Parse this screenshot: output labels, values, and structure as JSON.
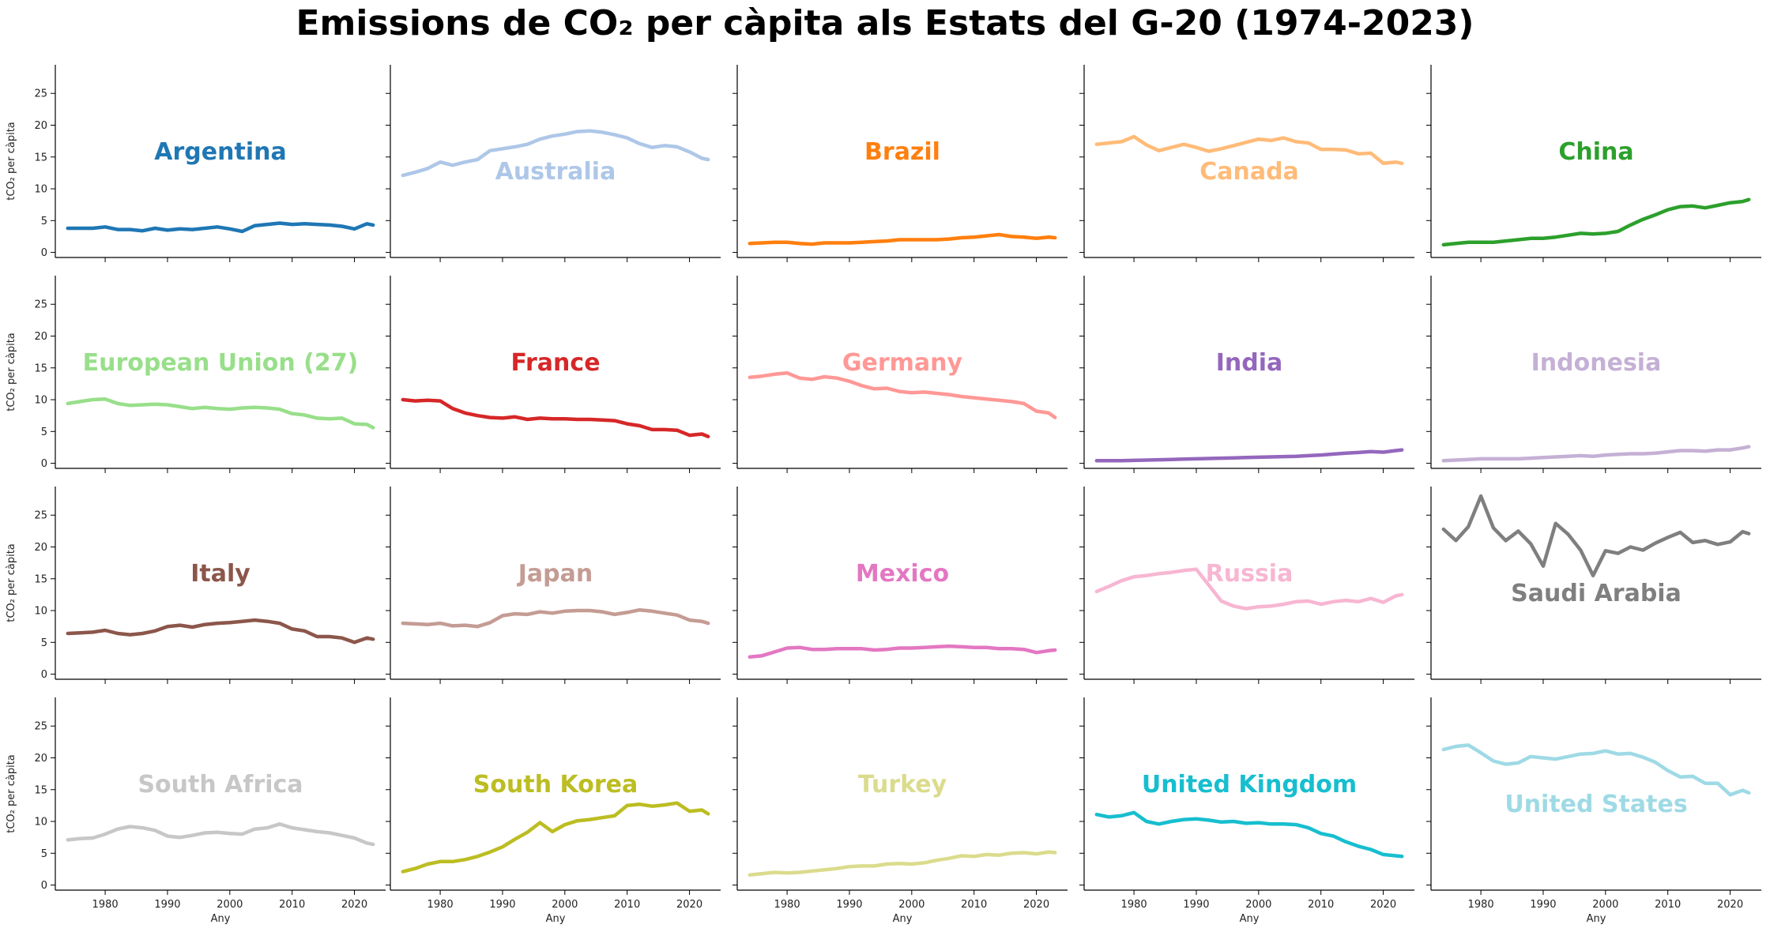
{
  "chart_data": {
    "type": "line",
    "title": "Emissions de CO₂ per càpita als Estats del G-20 (1974-2023)",
    "xlabel": "Any",
    "ylabel": "tCO₂ per càpita",
    "xlim": [
      1972,
      2025
    ],
    "ylim": [
      -0.8,
      29.5
    ],
    "xticks": [
      1980,
      1990,
      2000,
      2010,
      2020
    ],
    "yticks": [
      0,
      5,
      10,
      15,
      20,
      25
    ],
    "grid": false,
    "legend": "none",
    "x": [
      1974,
      1976,
      1978,
      1980,
      1982,
      1984,
      1986,
      1988,
      1990,
      1992,
      1994,
      1996,
      1998,
      2000,
      2002,
      2004,
      2006,
      2008,
      2010,
      2012,
      2014,
      2016,
      2018,
      2020,
      2022,
      2023
    ],
    "series": [
      {
        "name": "Argentina",
        "color": "#1f77b4",
        "label_pos": "high",
        "values": [
          3.8,
          3.8,
          3.8,
          4.0,
          3.6,
          3.6,
          3.4,
          3.8,
          3.5,
          3.7,
          3.6,
          3.8,
          4.0,
          3.7,
          3.3,
          4.2,
          4.4,
          4.6,
          4.4,
          4.5,
          4.4,
          4.3,
          4.1,
          3.7,
          4.5,
          4.3
        ]
      },
      {
        "name": "Australia",
        "color": "#aec7e8",
        "label_pos": "low",
        "values": [
          12.1,
          12.6,
          13.2,
          14.2,
          13.7,
          14.2,
          14.6,
          16.0,
          16.3,
          16.6,
          17.0,
          17.8,
          18.3,
          18.6,
          19.0,
          19.1,
          18.9,
          18.5,
          18.0,
          17.1,
          16.5,
          16.8,
          16.6,
          15.8,
          14.8,
          14.6
        ]
      },
      {
        "name": "Brazil",
        "color": "#ff7f0e",
        "label_pos": "high",
        "values": [
          1.4,
          1.5,
          1.6,
          1.6,
          1.4,
          1.3,
          1.5,
          1.5,
          1.5,
          1.6,
          1.7,
          1.8,
          2.0,
          2.0,
          2.0,
          2.0,
          2.1,
          2.3,
          2.4,
          2.6,
          2.8,
          2.5,
          2.4,
          2.2,
          2.4,
          2.3
        ]
      },
      {
        "name": "Canada",
        "color": "#ffbb78",
        "label_pos": "low",
        "values": [
          17.0,
          17.2,
          17.4,
          18.2,
          16.9,
          16.0,
          16.5,
          17.0,
          16.5,
          15.9,
          16.3,
          16.8,
          17.3,
          17.8,
          17.6,
          18.0,
          17.4,
          17.2,
          16.2,
          16.2,
          16.1,
          15.5,
          15.6,
          14.0,
          14.2,
          14.0
        ]
      },
      {
        "name": "China",
        "color": "#2ca02c",
        "label_pos": "high",
        "values": [
          1.2,
          1.4,
          1.6,
          1.6,
          1.6,
          1.8,
          2.0,
          2.2,
          2.2,
          2.4,
          2.7,
          3.0,
          2.9,
          3.0,
          3.3,
          4.3,
          5.2,
          5.9,
          6.7,
          7.2,
          7.3,
          7.0,
          7.4,
          7.8,
          8.0,
          8.3
        ]
      },
      {
        "name": "European Union (27)",
        "color": "#98df8a",
        "label_pos": "high",
        "values": [
          9.4,
          9.7,
          10.0,
          10.1,
          9.4,
          9.1,
          9.2,
          9.3,
          9.2,
          8.9,
          8.6,
          8.8,
          8.6,
          8.5,
          8.7,
          8.8,
          8.7,
          8.5,
          7.8,
          7.6,
          7.1,
          7.0,
          7.1,
          6.2,
          6.1,
          5.6
        ]
      },
      {
        "name": "France",
        "color": "#d62728",
        "label_pos": "high",
        "values": [
          10.0,
          9.8,
          9.9,
          9.8,
          8.6,
          7.9,
          7.5,
          7.2,
          7.1,
          7.3,
          6.9,
          7.1,
          7.0,
          7.0,
          6.9,
          6.9,
          6.8,
          6.7,
          6.2,
          5.9,
          5.3,
          5.3,
          5.2,
          4.4,
          4.6,
          4.2
        ]
      },
      {
        "name": "Germany",
        "color": "#ff9896",
        "label_pos": "high",
        "values": [
          13.5,
          13.7,
          14.0,
          14.2,
          13.4,
          13.2,
          13.6,
          13.4,
          12.9,
          12.2,
          11.7,
          11.8,
          11.3,
          11.1,
          11.2,
          11.0,
          10.8,
          10.5,
          10.3,
          10.1,
          9.9,
          9.7,
          9.4,
          8.2,
          7.9,
          7.2
        ]
      },
      {
        "name": "India",
        "color": "#9467bd",
        "label_pos": "high",
        "values": [
          0.4,
          0.4,
          0.4,
          0.45,
          0.5,
          0.55,
          0.6,
          0.65,
          0.7,
          0.75,
          0.8,
          0.85,
          0.9,
          0.95,
          1.0,
          1.05,
          1.1,
          1.2,
          1.3,
          1.45,
          1.6,
          1.7,
          1.85,
          1.75,
          2.0,
          2.1
        ]
      },
      {
        "name": "Indonesia",
        "color": "#c5b0d5",
        "label_pos": "high",
        "values": [
          0.4,
          0.5,
          0.6,
          0.7,
          0.7,
          0.7,
          0.7,
          0.8,
          0.9,
          1.0,
          1.1,
          1.2,
          1.1,
          1.3,
          1.4,
          1.5,
          1.5,
          1.6,
          1.8,
          2.0,
          2.0,
          1.9,
          2.1,
          2.1,
          2.4,
          2.6
        ]
      },
      {
        "name": "Italy",
        "color": "#8c564b",
        "label_pos": "high",
        "values": [
          6.4,
          6.5,
          6.6,
          6.9,
          6.4,
          6.2,
          6.4,
          6.8,
          7.5,
          7.7,
          7.4,
          7.8,
          8.0,
          8.1,
          8.3,
          8.5,
          8.3,
          8.0,
          7.1,
          6.8,
          5.9,
          5.9,
          5.7,
          5.0,
          5.7,
          5.5
        ]
      },
      {
        "name": "Japan",
        "color": "#c49c94",
        "label_pos": "high",
        "values": [
          8.0,
          7.9,
          7.8,
          8.0,
          7.6,
          7.7,
          7.5,
          8.1,
          9.2,
          9.5,
          9.4,
          9.8,
          9.6,
          9.9,
          10.0,
          10.0,
          9.8,
          9.4,
          9.7,
          10.1,
          9.9,
          9.6,
          9.3,
          8.5,
          8.3,
          8.0
        ]
      },
      {
        "name": "Mexico",
        "color": "#e377c2",
        "label_pos": "high",
        "values": [
          2.7,
          2.9,
          3.5,
          4.1,
          4.2,
          3.9,
          3.9,
          4.0,
          4.0,
          4.0,
          3.8,
          3.9,
          4.1,
          4.1,
          4.2,
          4.3,
          4.4,
          4.3,
          4.2,
          4.2,
          4.0,
          4.0,
          3.9,
          3.4,
          3.7,
          3.8
        ]
      },
      {
        "name": "Russia",
        "color": "#f7b6d2",
        "label_pos": "high",
        "values": [
          13.0,
          13.8,
          14.7,
          15.3,
          15.5,
          15.8,
          16.0,
          16.3,
          16.5,
          14.0,
          11.5,
          10.7,
          10.3,
          10.6,
          10.7,
          11.0,
          11.4,
          11.5,
          11.0,
          11.4,
          11.6,
          11.4,
          11.9,
          11.3,
          12.3,
          12.5
        ]
      },
      {
        "name": "Saudi Arabia",
        "color": "#7f7f7f",
        "label_pos": "low",
        "values": [
          22.8,
          21.0,
          23.2,
          28.0,
          23.0,
          21.0,
          22.5,
          20.5,
          17.0,
          23.7,
          22.0,
          19.5,
          15.5,
          19.4,
          19.0,
          20.0,
          19.5,
          20.6,
          21.5,
          22.3,
          20.7,
          21.0,
          20.4,
          20.8,
          22.4,
          22.1
        ]
      },
      {
        "name": "South Africa",
        "color": "#c7c7c7",
        "label_pos": "high",
        "values": [
          7.1,
          7.3,
          7.4,
          8.0,
          8.8,
          9.2,
          9.0,
          8.6,
          7.7,
          7.5,
          7.8,
          8.2,
          8.3,
          8.1,
          8.0,
          8.8,
          9.0,
          9.6,
          9.0,
          8.7,
          8.4,
          8.2,
          7.8,
          7.4,
          6.6,
          6.4
        ]
      },
      {
        "name": "South Korea",
        "color": "#bcbd22",
        "label_pos": "high",
        "values": [
          2.1,
          2.6,
          3.3,
          3.7,
          3.7,
          4.0,
          4.5,
          5.2,
          6.0,
          7.2,
          8.3,
          9.8,
          8.4,
          9.5,
          10.1,
          10.3,
          10.6,
          10.9,
          12.5,
          12.7,
          12.4,
          12.6,
          12.9,
          11.6,
          11.8,
          11.2
        ]
      },
      {
        "name": "Turkey",
        "color": "#dbdb8d",
        "label_pos": "high",
        "values": [
          1.6,
          1.8,
          2.0,
          1.9,
          2.0,
          2.2,
          2.4,
          2.6,
          2.9,
          3.0,
          3.0,
          3.3,
          3.4,
          3.3,
          3.5,
          3.9,
          4.2,
          4.6,
          4.5,
          4.8,
          4.7,
          5.0,
          5.1,
          4.9,
          5.2,
          5.1
        ]
      },
      {
        "name": "United Kingdom",
        "color": "#17becf",
        "label_pos": "high",
        "values": [
          11.1,
          10.7,
          10.9,
          11.4,
          10.0,
          9.6,
          10.0,
          10.3,
          10.4,
          10.2,
          9.9,
          10.0,
          9.7,
          9.8,
          9.6,
          9.6,
          9.5,
          9.0,
          8.1,
          7.7,
          6.8,
          6.1,
          5.6,
          4.8,
          4.6,
          4.5
        ]
      },
      {
        "name": "United States",
        "color": "#9edae5",
        "label_pos": "low",
        "values": [
          21.3,
          21.8,
          22.0,
          20.8,
          19.5,
          19.0,
          19.2,
          20.2,
          20.0,
          19.8,
          20.2,
          20.6,
          20.7,
          21.1,
          20.6,
          20.7,
          20.1,
          19.3,
          18.0,
          17.0,
          17.1,
          16.0,
          16.0,
          14.2,
          14.9,
          14.5
        ]
      }
    ]
  }
}
